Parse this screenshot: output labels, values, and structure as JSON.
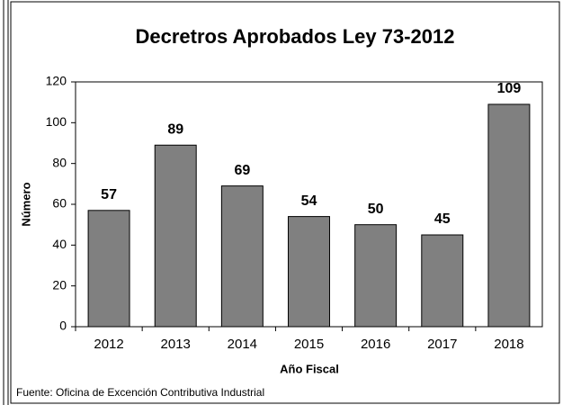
{
  "chart_data": {
    "type": "bar",
    "title": "Decretros Aprobados Ley 73-2012",
    "y_label": "Número",
    "x_label": "Año Fiscal",
    "source": "Fuente: Oficina de Excención Contributiva Industrial",
    "categories": [
      "2012",
      "2013",
      "2014",
      "2015",
      "2016",
      "2017",
      "2018"
    ],
    "values": [
      57,
      89,
      69,
      54,
      50,
      45,
      109
    ],
    "color": "#808080",
    "ylim": [
      0,
      120
    ],
    "yticks": [
      0,
      20,
      40,
      60,
      80,
      100,
      120
    ],
    "grid": false
  }
}
